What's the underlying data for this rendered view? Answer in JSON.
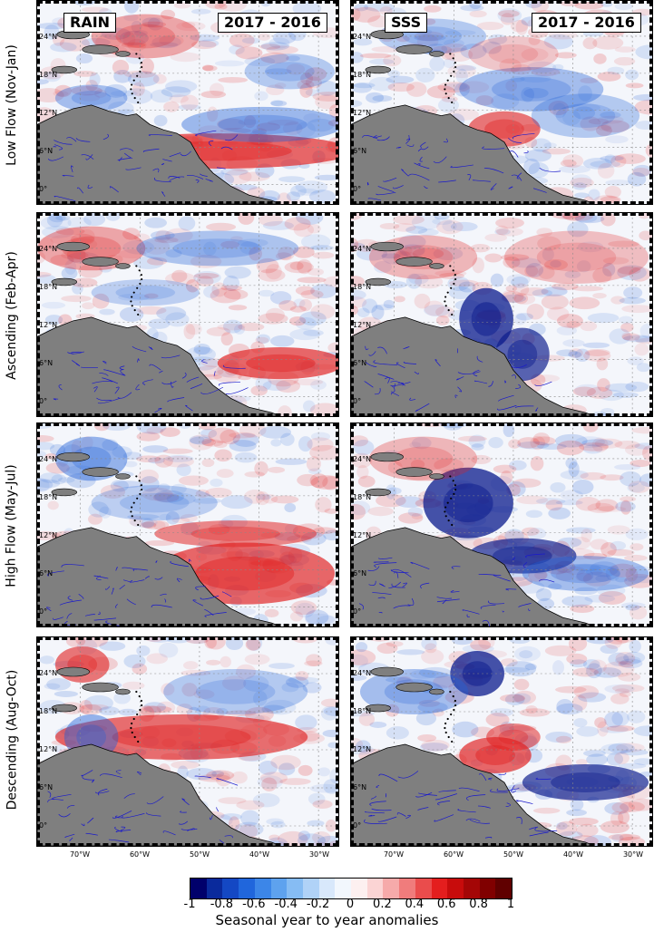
{
  "panels_left_header": "RAIN",
  "panels_right_header": "SSS",
  "period_label": "2017 - 2016",
  "rows": [
    {
      "label": "Low Flow (Nov-Jan)"
    },
    {
      "label": "Ascending (Feb-Apr)"
    },
    {
      "label": "High Flow (May-Jul)"
    },
    {
      "label": "Descending (Aug-Oct)"
    }
  ],
  "lat_labels": [
    "24°N",
    "18°N",
    "12°N",
    "6°N",
    "0°"
  ],
  "lon_labels": [
    "70°W",
    "60°W",
    "50°W",
    "40°W",
    "30°W"
  ],
  "colorbar": {
    "ticks": [
      "-1",
      "-0.8",
      "-0.6",
      "-0.4",
      "-0.2",
      "0",
      "0.2",
      "0.4",
      "0.6",
      "0.8",
      "1"
    ],
    "label": "Seasonal year to year anomalies",
    "colors": [
      "#00006b",
      "#0a2a9c",
      "#1448c4",
      "#2066dc",
      "#3c86e8",
      "#5ea2ee",
      "#86bcf3",
      "#b0d2f7",
      "#d8e8fb",
      "#f2f7fd",
      "#fdf0f0",
      "#fbd4d4",
      "#f6aaaa",
      "#f07c7c",
      "#ea4c4c",
      "#e41e1e",
      "#c80c0c",
      "#a40606",
      "#800000",
      "#600000"
    ]
  },
  "colors": {
    "land": "#7f7f7f",
    "rivers": "#1a1acc",
    "neg": "#1f5fd6",
    "pos": "#e02020"
  }
}
